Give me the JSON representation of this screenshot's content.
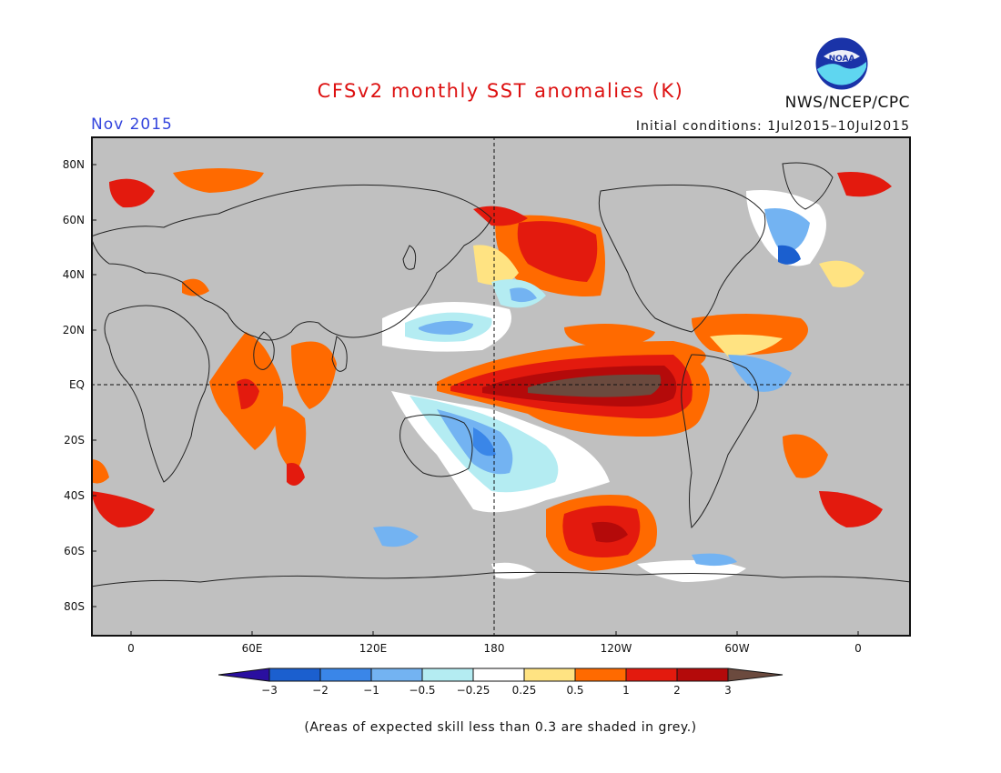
{
  "header": {
    "title": "CFSv2 monthly SST anomalies (K)",
    "month": "Nov 2015",
    "initial_conditions": "Initial conditions: 1Jul2015–10Jul2015",
    "organization": "NWS/NCEP/CPC",
    "logo_text": "NOAA"
  },
  "map": {
    "land_color": "#c0c0c0",
    "lat_labels": [
      "80N",
      "60N",
      "40N",
      "20N",
      "EQ",
      "20S",
      "40S",
      "60S",
      "80S"
    ],
    "lon_labels": [
      "0",
      "60E",
      "120E",
      "180",
      "120W",
      "60W",
      "0"
    ]
  },
  "colorbar": {
    "labels": [
      "−3",
      "−2",
      "−1",
      "−0.5",
      "−0.25",
      "0.25",
      "0.5",
      "1",
      "2",
      "3"
    ],
    "colors": [
      "#2a0fa0",
      "#1b5fcf",
      "#3a86e8",
      "#73b3f2",
      "#b4ecf2",
      "#ffffff",
      "#ffe382",
      "#ff6a00",
      "#e31a0e",
      "#b40a0a",
      "#6b4a3e"
    ]
  },
  "footer": {
    "note": "(Areas of expected skill less than 0.3 are shaded in grey.)"
  }
}
